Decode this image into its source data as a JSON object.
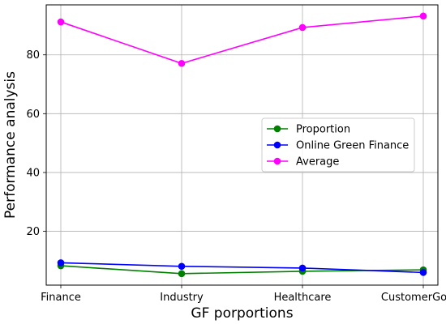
{
  "chart_data": {
    "type": "line",
    "categories": [
      "Finance",
      "Industry",
      "Healthcare",
      "CustomerGoods"
    ],
    "series": [
      {
        "name": "Proportion",
        "color": "#008000",
        "values": [
          8.3,
          5.6,
          6.4,
          6.9
        ]
      },
      {
        "name": "Online Green Finance",
        "color": "#0000ff",
        "values": [
          9.3,
          8.1,
          7.5,
          6.0
        ]
      },
      {
        "name": "Average",
        "color": "#ff00ff",
        "values": [
          91.2,
          77.1,
          89.3,
          93.2
        ]
      }
    ],
    "xlabel": "GF porportions",
    "ylabel": "Performance analysis",
    "ylim": [
      1.7,
      97
    ],
    "yticks": [
      20,
      40,
      60,
      80
    ],
    "grid": true,
    "legend_position": "center-right"
  }
}
